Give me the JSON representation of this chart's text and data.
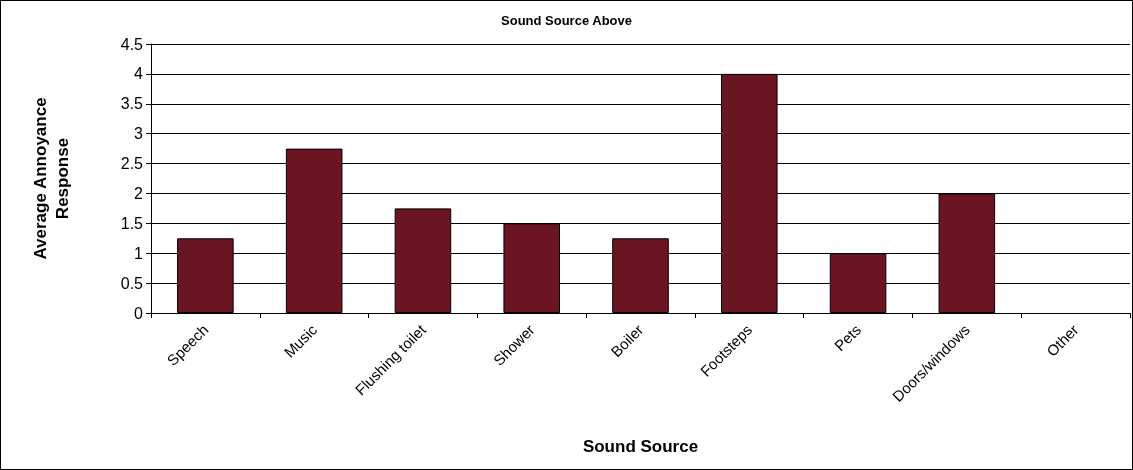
{
  "chart_data": {
    "type": "bar",
    "title": "Sound Source Above",
    "xlabel": "Sound Source",
    "ylabel": "Average Annoyance\nResponse",
    "categories": [
      "Speech",
      "Music",
      "Flushing toilet",
      "Shower",
      "Boiler",
      "Footsteps",
      "Pets",
      "Doors/windows",
      "Other"
    ],
    "values": [
      1.25,
      2.75,
      1.75,
      1.5,
      1.25,
      4,
      1,
      2,
      null
    ],
    "color": "#6b1522",
    "ylim": [
      0,
      4.5
    ],
    "yticks": [
      0,
      0.5,
      1,
      1.5,
      2,
      2.5,
      3,
      3.5,
      4,
      4.5
    ],
    "grid": "y"
  }
}
